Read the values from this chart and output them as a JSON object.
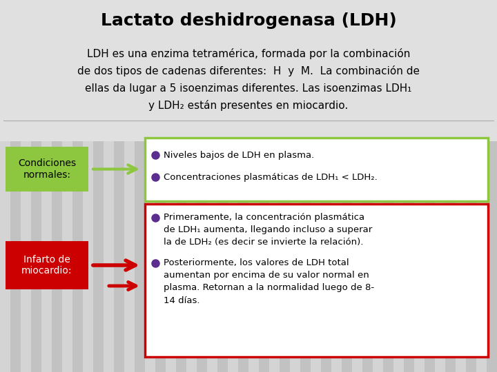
{
  "title": "Lactato deshidrogenasa (LDH)",
  "bg_stripe_light": "#d4d4d4",
  "bg_stripe_dark": "#c2c2c2",
  "top_bg": "#d8d8d8",
  "title_color": "#000000",
  "box1_label": "Condiciones\nnormales:",
  "box1_bg": "#8dc63f",
  "box1_text_color": "#000000",
  "arrow1_color": "#8dc63f",
  "green_box_border": "#8dc63f",
  "green_box_bg": "#ffffff",
  "green_bullet1": "Niveles bajos de LDH en plasma.",
  "green_bullet2": "Concentraciones plasmáticas de LDH₁ < LDH₂.",
  "box2_label": "Infarto de\nmiocardio:",
  "box2_bg": "#cc0000",
  "box2_text_color": "#ffffff",
  "arrow2_color": "#cc0000",
  "red_box_border": "#cc0000",
  "red_box_bg": "#ffffff",
  "red_bullet1_line1": "Primeramente, la concentración plasmática",
  "red_bullet1_line2": "de LDH₁ aumenta, llegando incluso a superar",
  "red_bullet1_line3": "la de LDH₂ (es decir se invierte la relación).",
  "red_bullet2_line1": "Posteriormente, los valores de LDH total",
  "red_bullet2_line2": "aumentan por encima de su valor normal en",
  "red_bullet2_line3": "plasma. Retornan a la normalidad luego de 8-",
  "red_bullet2_line4": "14 días.",
  "bullet_color": "#5b2d8e",
  "intro_line1": "LDH es una enzima tetramérica, formada por la combinación",
  "intro_line2": "de dos tipos de cadenas diferentes:  H  y  M.  La combinación de",
  "intro_line3": "ellas da lugar a 5 isoenzimas diferentes. Las isoenzimas LDH₁",
  "intro_line4": "y LDH₂ están presentes en miocardio."
}
